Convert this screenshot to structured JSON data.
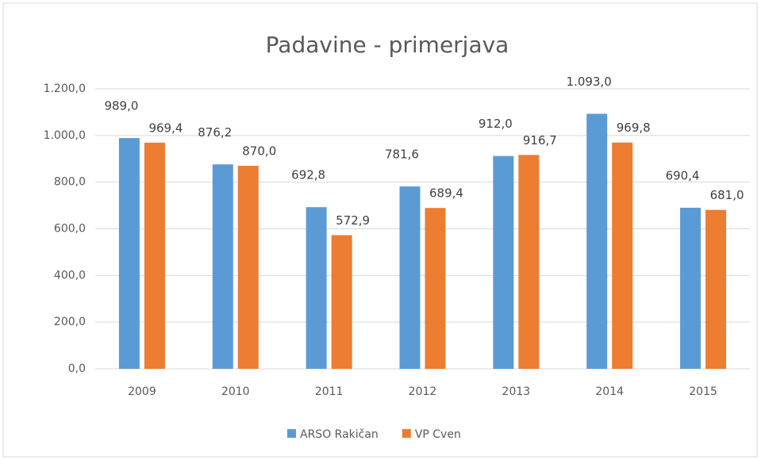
{
  "chart_data": {
    "type": "bar",
    "title": "Padavine - primerjava",
    "categories": [
      "2009",
      "2010",
      "2011",
      "2012",
      "2013",
      "2014",
      "2015"
    ],
    "series": [
      {
        "name": "ARSO Rakičan",
        "color": "#5b9bd5",
        "values": [
          989.0,
          876.2,
          692.8,
          781.6,
          912.0,
          1093.0,
          690.4
        ],
        "value_labels": [
          "989,0",
          "876,2",
          "692,8",
          "781,6",
          "912,0",
          "1.093,0",
          "690,4"
        ]
      },
      {
        "name": "VP Cven",
        "color": "#ed7d31",
        "values": [
          969.4,
          870.0,
          572.9,
          689.4,
          916.7,
          969.8,
          681.0
        ],
        "value_labels": [
          "969,4",
          "870,0",
          "572,9",
          "689,4",
          "916,7",
          "969,8",
          "681,0"
        ]
      }
    ],
    "ylim": [
      0,
      1200
    ],
    "yticks": [
      {
        "value": 0,
        "label": "0,0"
      },
      {
        "value": 200,
        "label": "200,0"
      },
      {
        "value": 400,
        "label": "400,0"
      },
      {
        "value": 600,
        "label": "600,0"
      },
      {
        "value": 800,
        "label": "800,0"
      },
      {
        "value": 1000,
        "label": "1.000,0"
      },
      {
        "value": 1200,
        "label": "1.200,0"
      }
    ],
    "grid": true,
    "legend": "bottom"
  }
}
